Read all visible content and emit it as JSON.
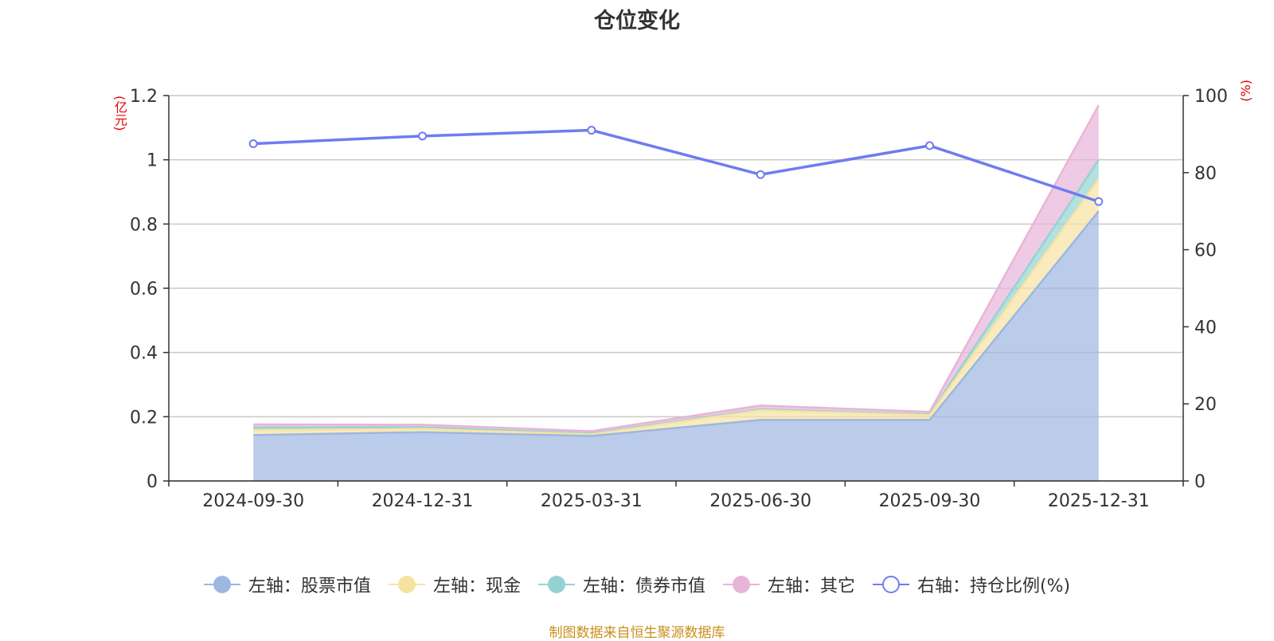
{
  "title": "仓位变化",
  "left_unit": "(亿元)",
  "right_unit": "(%)",
  "source": "制图数据来自恒生聚源数据库",
  "chart_data": {
    "type": "area",
    "categories": [
      "2024-09-30",
      "2024-12-31",
      "2025-03-31",
      "2025-06-30",
      "2025-09-30",
      "2025-12-31"
    ],
    "left_axis": {
      "min": 0,
      "max": 1.2,
      "ticks": [
        "0",
        "0.2",
        "0.4",
        "0.6",
        "0.8",
        "1",
        "1.2"
      ]
    },
    "right_axis": {
      "min": 0,
      "max": 100,
      "ticks": [
        "0",
        "20",
        "40",
        "60",
        "80",
        "100"
      ]
    },
    "grid": true,
    "stacked": true,
    "series": [
      {
        "name": "左轴：股票市值",
        "axis": "left",
        "type": "area",
        "color": "#9db7e0",
        "values": [
          0.143,
          0.152,
          0.14,
          0.19,
          0.19,
          0.84
        ]
      },
      {
        "name": "左轴：现金",
        "axis": "left",
        "type": "area",
        "color": "#f6e3a1",
        "values": [
          0.015,
          0.01,
          0.005,
          0.03,
          0.015,
          0.1
        ]
      },
      {
        "name": "左轴：债券市值",
        "axis": "left",
        "type": "area",
        "color": "#95d3d3",
        "values": [
          0.008,
          0.005,
          0.003,
          0.003,
          0.002,
          0.06
        ]
      },
      {
        "name": "左轴：其它",
        "axis": "left",
        "type": "area",
        "color": "#e8b4d8",
        "values": [
          0.01,
          0.008,
          0.007,
          0.012,
          0.008,
          0.17
        ]
      },
      {
        "name": "右轴：持仓比例(%)",
        "axis": "right",
        "type": "line",
        "color": "#6f7cf0",
        "values": [
          87.5,
          89.5,
          91.0,
          79.5,
          87.0,
          72.5
        ]
      }
    ],
    "legend_position": "bottom"
  }
}
